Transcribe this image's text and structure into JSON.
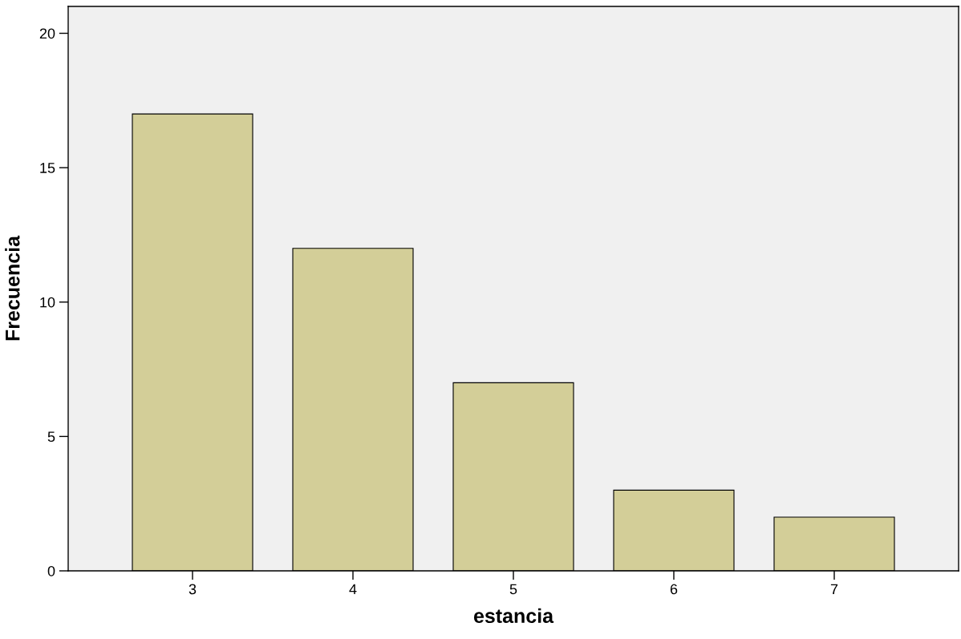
{
  "chart_data": {
    "type": "bar",
    "xlabel": "estancia",
    "ylabel": "Frecuencia",
    "categories": [
      "3",
      "4",
      "5",
      "6",
      "7"
    ],
    "values": [
      17,
      12,
      7,
      3,
      2
    ],
    "color": "#d3ce98",
    "ylim": [
      0,
      21
    ],
    "yticks": [
      0,
      5,
      10,
      15,
      20
    ],
    "grid": false,
    "legend": false
  }
}
